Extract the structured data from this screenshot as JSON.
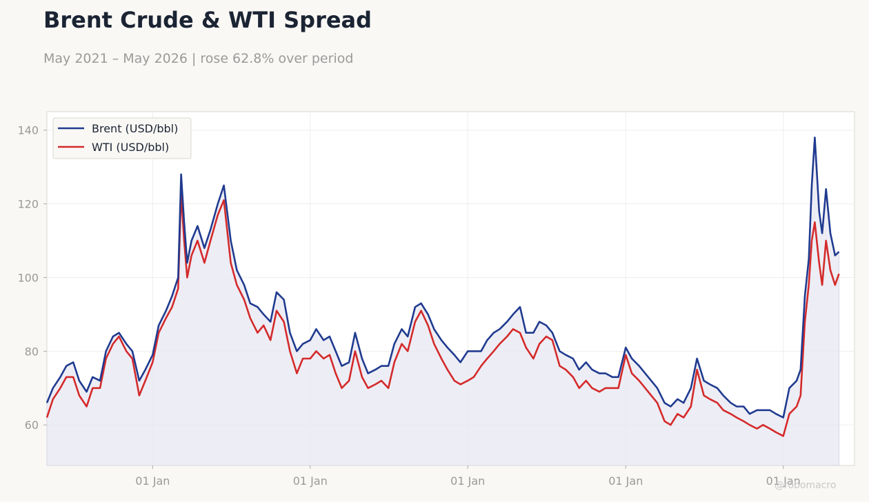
{
  "header": {
    "title": "Brent Crude & WTI Spread",
    "subtitle": "May 2021 – May 2026 | rose 62.8% over period"
  },
  "watermark": "@robomacro",
  "colors": {
    "brent": "#1f3a8f",
    "wti": "#d42a2a",
    "fill": "#e9e9f2",
    "grid": "#eeeeee",
    "plot_bg": "#ffffff",
    "plot_border": "#d8d8d0"
  },
  "chart_data": {
    "type": "line",
    "title": "Brent Crude & WTI Spread",
    "xlabel": "",
    "ylabel": "",
    "x_range": [
      "2021-05-01",
      "2026-06-15"
    ],
    "ylim": [
      49,
      145
    ],
    "y_ticks": [
      60,
      80,
      100,
      120,
      140
    ],
    "x_ticks": [
      {
        "date": "2022-01-01",
        "label": "01 Jan"
      },
      {
        "date": "2023-01-01",
        "label": "01 Jan"
      },
      {
        "date": "2024-01-01",
        "label": "01 Jan"
      },
      {
        "date": "2025-01-01",
        "label": "01 Jan"
      },
      {
        "date": "2026-01-01",
        "label": "01 Jan"
      }
    ],
    "grid": true,
    "legend_position": "top-left",
    "shade_under": "Brent (USD/bbl)",
    "series": [
      {
        "name": "Brent (USD/bbl)",
        "color": "#1f3a8f",
        "x": [
          "2021-05-01",
          "2021-05-15",
          "2021-06-01",
          "2021-06-15",
          "2021-07-01",
          "2021-07-15",
          "2021-08-01",
          "2021-08-15",
          "2021-09-01",
          "2021-09-15",
          "2021-10-01",
          "2021-10-15",
          "2021-11-01",
          "2021-11-15",
          "2021-12-01",
          "2021-12-15",
          "2022-01-01",
          "2022-01-15",
          "2022-02-01",
          "2022-02-15",
          "2022-03-01",
          "2022-03-08",
          "2022-03-15",
          "2022-03-22",
          "2022-04-01",
          "2022-04-15",
          "2022-05-01",
          "2022-05-15",
          "2022-06-01",
          "2022-06-15",
          "2022-07-01",
          "2022-07-15",
          "2022-08-01",
          "2022-08-15",
          "2022-09-01",
          "2022-09-15",
          "2022-10-01",
          "2022-10-15",
          "2022-11-01",
          "2022-11-15",
          "2022-12-01",
          "2022-12-15",
          "2023-01-01",
          "2023-01-15",
          "2023-02-01",
          "2023-02-15",
          "2023-03-01",
          "2023-03-15",
          "2023-04-01",
          "2023-04-15",
          "2023-05-01",
          "2023-05-15",
          "2023-06-01",
          "2023-06-15",
          "2023-07-01",
          "2023-07-15",
          "2023-08-01",
          "2023-08-15",
          "2023-09-01",
          "2023-09-15",
          "2023-10-01",
          "2023-10-15",
          "2023-11-01",
          "2023-11-15",
          "2023-12-01",
          "2023-12-15",
          "2024-01-01",
          "2024-01-15",
          "2024-02-01",
          "2024-02-15",
          "2024-03-01",
          "2024-03-15",
          "2024-04-01",
          "2024-04-15",
          "2024-05-01",
          "2024-05-15",
          "2024-06-01",
          "2024-06-15",
          "2024-07-01",
          "2024-07-15",
          "2024-08-01",
          "2024-08-15",
          "2024-09-01",
          "2024-09-15",
          "2024-10-01",
          "2024-10-15",
          "2024-11-01",
          "2024-11-15",
          "2024-12-01",
          "2024-12-15",
          "2025-01-01",
          "2025-01-15",
          "2025-02-01",
          "2025-02-15",
          "2025-03-01",
          "2025-03-15",
          "2025-04-01",
          "2025-04-15",
          "2025-05-01",
          "2025-05-15",
          "2025-06-01",
          "2025-06-15",
          "2025-07-01",
          "2025-07-15",
          "2025-08-01",
          "2025-08-15",
          "2025-09-01",
          "2025-09-15",
          "2025-10-01",
          "2025-10-15",
          "2025-11-01",
          "2025-11-15",
          "2025-12-01",
          "2025-12-15",
          "2026-01-01",
          "2026-01-15",
          "2026-02-01",
          "2026-02-10",
          "2026-02-20",
          "2026-03-01",
          "2026-03-08",
          "2026-03-15",
          "2026-03-25",
          "2026-04-01",
          "2026-04-10",
          "2026-04-20",
          "2026-05-01",
          "2026-05-10"
        ],
        "values": [
          66,
          70,
          73,
          76,
          77,
          72,
          69,
          73,
          72,
          80,
          84,
          85,
          82,
          80,
          72,
          75,
          79,
          87,
          91,
          95,
          100,
          128,
          115,
          104,
          110,
          114,
          108,
          113,
          120,
          125,
          110,
          102,
          98,
          93,
          92,
          90,
          88,
          96,
          94,
          85,
          80,
          82,
          83,
          86,
          83,
          84,
          80,
          76,
          77,
          85,
          78,
          74,
          75,
          76,
          76,
          82,
          86,
          84,
          92,
          93,
          90,
          86,
          83,
          81,
          79,
          77,
          80,
          80,
          80,
          83,
          85,
          86,
          88,
          90,
          92,
          85,
          85,
          88,
          87,
          85,
          80,
          79,
          78,
          75,
          77,
          75,
          74,
          74,
          73,
          73,
          81,
          78,
          76,
          74,
          72,
          70,
          66,
          65,
          67,
          66,
          70,
          78,
          72,
          71,
          70,
          68,
          66,
          65,
          65,
          63,
          64,
          64,
          64,
          63,
          62,
          70,
          72,
          75,
          95,
          105,
          125,
          138,
          118,
          112,
          124,
          112,
          106,
          107
        ]
      },
      {
        "name": "WTI (USD/bbl)",
        "color": "#d42a2a",
        "x": [
          "2021-05-01",
          "2021-05-15",
          "2021-06-01",
          "2021-06-15",
          "2021-07-01",
          "2021-07-15",
          "2021-08-01",
          "2021-08-15",
          "2021-09-01",
          "2021-09-15",
          "2021-10-01",
          "2021-10-15",
          "2021-11-01",
          "2021-11-15",
          "2021-12-01",
          "2021-12-15",
          "2022-01-01",
          "2022-01-15",
          "2022-02-01",
          "2022-02-15",
          "2022-03-01",
          "2022-03-08",
          "2022-03-15",
          "2022-03-22",
          "2022-04-01",
          "2022-04-15",
          "2022-05-01",
          "2022-05-15",
          "2022-06-01",
          "2022-06-15",
          "2022-07-01",
          "2022-07-15",
          "2022-08-01",
          "2022-08-15",
          "2022-09-01",
          "2022-09-15",
          "2022-10-01",
          "2022-10-15",
          "2022-11-01",
          "2022-11-15",
          "2022-12-01",
          "2022-12-15",
          "2023-01-01",
          "2023-01-15",
          "2023-02-01",
          "2023-02-15",
          "2023-03-01",
          "2023-03-15",
          "2023-04-01",
          "2023-04-15",
          "2023-05-01",
          "2023-05-15",
          "2023-06-01",
          "2023-06-15",
          "2023-07-01",
          "2023-07-15",
          "2023-08-01",
          "2023-08-15",
          "2023-09-01",
          "2023-09-15",
          "2023-10-01",
          "2023-10-15",
          "2023-11-01",
          "2023-11-15",
          "2023-12-01",
          "2023-12-15",
          "2024-01-01",
          "2024-01-15",
          "2024-02-01",
          "2024-02-15",
          "2024-03-01",
          "2024-03-15",
          "2024-04-01",
          "2024-04-15",
          "2024-05-01",
          "2024-05-15",
          "2024-06-01",
          "2024-06-15",
          "2024-07-01",
          "2024-07-15",
          "2024-08-01",
          "2024-08-15",
          "2024-09-01",
          "2024-09-15",
          "2024-10-01",
          "2024-10-15",
          "2024-11-01",
          "2024-11-15",
          "2024-12-01",
          "2024-12-15",
          "2025-01-01",
          "2025-01-15",
          "2025-02-01",
          "2025-02-15",
          "2025-03-01",
          "2025-03-15",
          "2025-04-01",
          "2025-04-15",
          "2025-05-01",
          "2025-05-15",
          "2025-06-01",
          "2025-06-15",
          "2025-07-01",
          "2025-07-15",
          "2025-08-01",
          "2025-08-15",
          "2025-09-01",
          "2025-09-15",
          "2025-10-01",
          "2025-10-15",
          "2025-11-01",
          "2025-11-15",
          "2025-12-01",
          "2025-12-15",
          "2026-01-01",
          "2026-01-15",
          "2026-02-01",
          "2026-02-10",
          "2026-02-20",
          "2026-03-01",
          "2026-03-08",
          "2026-03-15",
          "2026-03-25",
          "2026-04-01",
          "2026-04-10",
          "2026-04-20",
          "2026-05-01",
          "2026-05-10"
        ],
        "values": [
          62,
          67,
          70,
          73,
          73,
          68,
          65,
          70,
          70,
          78,
          82,
          84,
          80,
          78,
          68,
          72,
          77,
          85,
          89,
          92,
          97,
          123,
          110,
          100,
          106,
          110,
          104,
          110,
          117,
          121,
          104,
          98,
          94,
          89,
          85,
          87,
          83,
          91,
          88,
          80,
          74,
          78,
          78,
          80,
          78,
          79,
          74,
          70,
          72,
          80,
          73,
          70,
          71,
          72,
          70,
          77,
          82,
          80,
          88,
          91,
          87,
          82,
          78,
          75,
          72,
          71,
          72,
          73,
          76,
          78,
          80,
          82,
          84,
          86,
          85,
          81,
          78,
          82,
          84,
          83,
          76,
          75,
          73,
          70,
          72,
          70,
          69,
          70,
          70,
          70,
          79,
          74,
          72,
          70,
          68,
          66,
          61,
          60,
          63,
          62,
          65,
          75,
          68,
          67,
          66,
          64,
          63,
          62,
          61,
          60,
          59,
          60,
          59,
          58,
          57,
          63,
          65,
          68,
          88,
          98,
          110,
          115,
          104,
          98,
          110,
          102,
          98,
          101
        ]
      }
    ]
  }
}
